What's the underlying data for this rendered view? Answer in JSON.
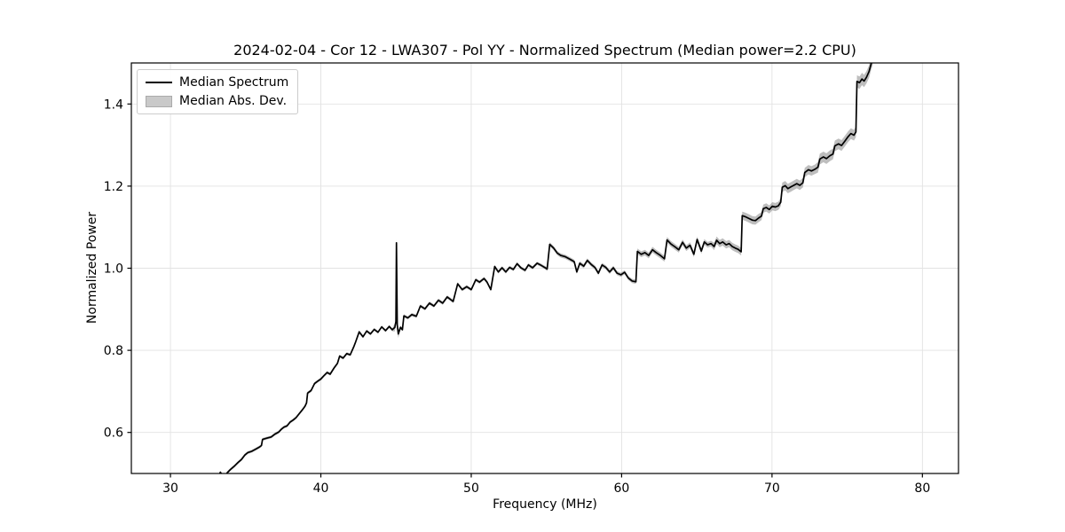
{
  "chart_data": {
    "type": "line",
    "title": "2024-02-04 - Cor 12 - LWA307 - Pol YY - Normalized Spectrum (Median power=2.2 CPU)",
    "xlabel": "Frequency (MHz)",
    "ylabel": "Normalized Power",
    "xlim": [
      27.4,
      82.4
    ],
    "ylim": [
      0.5,
      1.5
    ],
    "xticks": [
      30,
      40,
      50,
      60,
      70,
      80
    ],
    "yticks": [
      0.6,
      0.8,
      1.0,
      1.2,
      1.4
    ],
    "grid": true,
    "grid_color": "#e2e2e2",
    "spine_color": "#000000",
    "legend": {
      "position": "upper-left",
      "entries": [
        {
          "label": "Median Spectrum",
          "type": "line",
          "color": "#000000"
        },
        {
          "label": "Median Abs. Dev.",
          "type": "patch",
          "color": "#c9c9c9"
        }
      ]
    },
    "series": [
      {
        "name": "Median Spectrum",
        "color": "#000000",
        "points": [
          [
            33.2,
            0.494
          ],
          [
            33.32,
            0.503
          ],
          [
            33.45,
            0.496
          ],
          [
            33.62,
            0.493
          ],
          [
            33.78,
            0.502
          ],
          [
            34.0,
            0.51
          ],
          [
            34.25,
            0.518
          ],
          [
            34.5,
            0.527
          ],
          [
            34.72,
            0.534
          ],
          [
            34.95,
            0.545
          ],
          [
            35.15,
            0.551
          ],
          [
            35.4,
            0.554
          ],
          [
            35.65,
            0.559
          ],
          [
            35.9,
            0.564
          ],
          [
            36.05,
            0.568
          ],
          [
            36.12,
            0.583
          ],
          [
            36.4,
            0.586
          ],
          [
            36.7,
            0.589
          ],
          [
            36.95,
            0.596
          ],
          [
            37.2,
            0.601
          ],
          [
            37.38,
            0.608
          ],
          [
            37.55,
            0.613
          ],
          [
            37.75,
            0.616
          ],
          [
            37.95,
            0.625
          ],
          [
            38.15,
            0.63
          ],
          [
            38.35,
            0.636
          ],
          [
            38.55,
            0.645
          ],
          [
            38.75,
            0.654
          ],
          [
            38.95,
            0.664
          ],
          [
            39.05,
            0.672
          ],
          [
            39.12,
            0.696
          ],
          [
            39.35,
            0.702
          ],
          [
            39.58,
            0.719
          ],
          [
            39.8,
            0.725
          ],
          [
            40.0,
            0.73
          ],
          [
            40.2,
            0.738
          ],
          [
            40.42,
            0.746
          ],
          [
            40.62,
            0.742
          ],
          [
            40.88,
            0.757
          ],
          [
            41.1,
            0.768
          ],
          [
            41.25,
            0.786
          ],
          [
            41.48,
            0.781
          ],
          [
            41.72,
            0.792
          ],
          [
            41.95,
            0.789
          ],
          [
            42.18,
            0.808
          ],
          [
            42.32,
            0.821
          ],
          [
            42.55,
            0.845
          ],
          [
            42.8,
            0.833
          ],
          [
            43.05,
            0.847
          ],
          [
            43.3,
            0.84
          ],
          [
            43.55,
            0.851
          ],
          [
            43.8,
            0.844
          ],
          [
            44.05,
            0.857
          ],
          [
            44.3,
            0.848
          ],
          [
            44.55,
            0.858
          ],
          [
            44.75,
            0.85
          ],
          [
            44.92,
            0.856
          ],
          [
            44.99,
            0.87
          ],
          [
            45.03,
            1.062
          ],
          [
            45.08,
            0.862
          ],
          [
            45.15,
            0.84
          ],
          [
            45.3,
            0.856
          ],
          [
            45.42,
            0.85
          ],
          [
            45.52,
            0.884
          ],
          [
            45.78,
            0.879
          ],
          [
            46.05,
            0.887
          ],
          [
            46.35,
            0.883
          ],
          [
            46.62,
            0.908
          ],
          [
            46.92,
            0.901
          ],
          [
            47.22,
            0.915
          ],
          [
            47.52,
            0.908
          ],
          [
            47.82,
            0.922
          ],
          [
            48.1,
            0.915
          ],
          [
            48.4,
            0.93
          ],
          [
            48.62,
            0.924
          ],
          [
            48.8,
            0.919
          ],
          [
            49.1,
            0.962
          ],
          [
            49.4,
            0.948
          ],
          [
            49.7,
            0.955
          ],
          [
            50.0,
            0.948
          ],
          [
            50.3,
            0.972
          ],
          [
            50.55,
            0.966
          ],
          [
            50.85,
            0.975
          ],
          [
            51.05,
            0.966
          ],
          [
            51.3,
            0.948
          ],
          [
            51.56,
            1.004
          ],
          [
            51.8,
            0.991
          ],
          [
            52.05,
            1.001
          ],
          [
            52.3,
            0.991
          ],
          [
            52.55,
            1.002
          ],
          [
            52.8,
            0.997
          ],
          [
            53.05,
            1.011
          ],
          [
            53.3,
            1.001
          ],
          [
            53.58,
            0.995
          ],
          [
            53.8,
            1.008
          ],
          [
            54.08,
            1.001
          ],
          [
            54.38,
            1.012
          ],
          [
            54.65,
            1.007
          ],
          [
            54.88,
            1.002
          ],
          [
            55.05,
            0.998
          ],
          [
            55.22,
            1.058
          ],
          [
            55.48,
            1.049
          ],
          [
            55.72,
            1.037
          ],
          [
            55.95,
            1.031
          ],
          [
            56.25,
            1.028
          ],
          [
            56.55,
            1.022
          ],
          [
            56.85,
            1.016
          ],
          [
            57.02,
            0.991
          ],
          [
            57.22,
            1.012
          ],
          [
            57.48,
            1.005
          ],
          [
            57.72,
            1.019
          ],
          [
            57.98,
            1.009
          ],
          [
            58.22,
            1.002
          ],
          [
            58.45,
            0.988
          ],
          [
            58.7,
            1.008
          ],
          [
            58.95,
            1.002
          ],
          [
            59.2,
            0.991
          ],
          [
            59.45,
            1.001
          ],
          [
            59.7,
            0.988
          ],
          [
            59.95,
            0.984
          ],
          [
            60.2,
            0.99
          ],
          [
            60.45,
            0.976
          ],
          [
            60.7,
            0.969
          ],
          [
            60.95,
            0.967
          ],
          [
            61.05,
            1.041
          ],
          [
            61.3,
            1.034
          ],
          [
            61.55,
            1.038
          ],
          [
            61.8,
            1.031
          ],
          [
            62.05,
            1.045
          ],
          [
            62.3,
            1.038
          ],
          [
            62.58,
            1.031
          ],
          [
            62.85,
            1.023
          ],
          [
            63.02,
            1.069
          ],
          [
            63.28,
            1.059
          ],
          [
            63.55,
            1.052
          ],
          [
            63.8,
            1.045
          ],
          [
            64.05,
            1.063
          ],
          [
            64.3,
            1.049
          ],
          [
            64.55,
            1.056
          ],
          [
            64.8,
            1.034
          ],
          [
            65.02,
            1.07
          ],
          [
            65.3,
            1.042
          ],
          [
            65.5,
            1.064
          ],
          [
            65.72,
            1.057
          ],
          [
            65.95,
            1.06
          ],
          [
            66.15,
            1.053
          ],
          [
            66.32,
            1.068
          ],
          [
            66.52,
            1.06
          ],
          [
            66.72,
            1.064
          ],
          [
            66.95,
            1.057
          ],
          [
            67.15,
            1.06
          ],
          [
            67.35,
            1.053
          ],
          [
            67.55,
            1.049
          ],
          [
            67.75,
            1.046
          ],
          [
            67.95,
            1.04
          ],
          [
            68.02,
            1.128
          ],
          [
            68.25,
            1.125
          ],
          [
            68.48,
            1.121
          ],
          [
            68.7,
            1.117
          ],
          [
            68.9,
            1.116
          ],
          [
            69.1,
            1.122
          ],
          [
            69.3,
            1.127
          ],
          [
            69.42,
            1.145
          ],
          [
            69.62,
            1.148
          ],
          [
            69.82,
            1.143
          ],
          [
            70.02,
            1.151
          ],
          [
            70.22,
            1.149
          ],
          [
            70.42,
            1.152
          ],
          [
            70.58,
            1.161
          ],
          [
            70.68,
            1.197
          ],
          [
            70.88,
            1.201
          ],
          [
            71.05,
            1.194
          ],
          [
            71.25,
            1.198
          ],
          [
            71.45,
            1.202
          ],
          [
            71.65,
            1.206
          ],
          [
            71.85,
            1.202
          ],
          [
            72.05,
            1.208
          ],
          [
            72.18,
            1.233
          ],
          [
            72.42,
            1.24
          ],
          [
            72.62,
            1.237
          ],
          [
            72.85,
            1.241
          ],
          [
            73.05,
            1.246
          ],
          [
            73.18,
            1.266
          ],
          [
            73.42,
            1.271
          ],
          [
            73.62,
            1.267
          ],
          [
            73.85,
            1.274
          ],
          [
            74.05,
            1.278
          ],
          [
            74.18,
            1.298
          ],
          [
            74.42,
            1.303
          ],
          [
            74.62,
            1.299
          ],
          [
            74.85,
            1.31
          ],
          [
            75.05,
            1.32
          ],
          [
            75.25,
            1.328
          ],
          [
            75.45,
            1.324
          ],
          [
            75.58,
            1.332
          ],
          [
            75.65,
            1.455
          ],
          [
            75.82,
            1.452
          ],
          [
            75.98,
            1.461
          ],
          [
            76.12,
            1.456
          ],
          [
            76.28,
            1.465
          ],
          [
            76.45,
            1.479
          ],
          [
            76.6,
            1.499
          ],
          [
            76.7,
            1.51
          ]
        ]
      }
    ],
    "band": {
      "name": "Median Abs. Dev.",
      "fill_color": "rgba(100,100,100,0.42)",
      "halfwidth_segments": [
        [
          27.4,
          44.85,
          0.0035
        ],
        [
          44.85,
          45.2,
          0.01
        ],
        [
          45.2,
          55.0,
          0.004
        ],
        [
          55.0,
          61.0,
          0.005
        ],
        [
          61.0,
          66.0,
          0.007
        ],
        [
          66.0,
          68.0,
          0.009
        ],
        [
          68.0,
          70.6,
          0.01
        ],
        [
          70.6,
          73.0,
          0.0115
        ],
        [
          73.0,
          75.6,
          0.013
        ],
        [
          75.6,
          82.4,
          0.015
        ]
      ]
    }
  }
}
